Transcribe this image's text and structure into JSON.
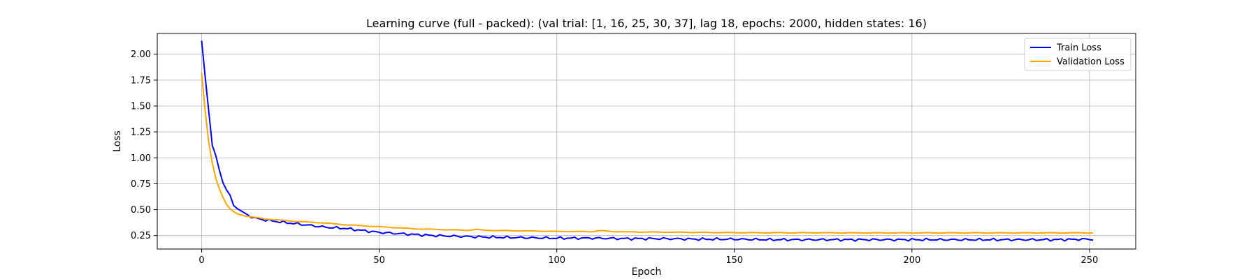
{
  "chart_data": {
    "type": "line",
    "title": "Learning curve (full - packed): (val trial: [1, 16, 25, 30, 37], lag 18, epochs: 2000, hidden states: 16)",
    "xlabel": "Epoch",
    "ylabel": "Loss",
    "xlim": [
      -12.5,
      263
    ],
    "ylim": [
      0.12,
      2.2
    ],
    "xticks": [
      0,
      50,
      100,
      150,
      200,
      250
    ],
    "yticks": [
      0.25,
      0.5,
      0.75,
      1.0,
      1.25,
      1.5,
      1.75,
      2.0
    ],
    "grid": true,
    "legend_position": "top-right",
    "series_keypoints": [
      {
        "name": "Train Loss",
        "color": "#0000ff",
        "x": [
          0,
          1,
          2,
          3,
          4,
          5,
          6,
          7,
          8,
          9,
          10,
          12,
          14,
          16,
          18,
          20,
          25,
          30,
          35,
          40,
          45,
          50,
          55,
          60,
          65,
          70,
          75,
          80,
          90,
          100,
          110,
          120,
          130,
          140,
          150,
          160,
          170,
          180,
          190,
          200,
          210,
          220,
          230,
          240,
          250,
          251
        ],
        "y": [
          2.13,
          1.78,
          1.45,
          1.12,
          1.02,
          0.88,
          0.76,
          0.69,
          0.64,
          0.54,
          0.51,
          0.47,
          0.43,
          0.41,
          0.4,
          0.39,
          0.37,
          0.35,
          0.33,
          0.32,
          0.3,
          0.28,
          0.27,
          0.26,
          0.25,
          0.245,
          0.24,
          0.235,
          0.23,
          0.225,
          0.225,
          0.22,
          0.22,
          0.215,
          0.215,
          0.21,
          0.21,
          0.21,
          0.21,
          0.21,
          0.21,
          0.21,
          0.21,
          0.21,
          0.215,
          0.21
        ]
      },
      {
        "name": "Validation Loss",
        "color": "#ffa500",
        "x": [
          0,
          1,
          2,
          3,
          4,
          5,
          6,
          7,
          8,
          9,
          10,
          12,
          14,
          16,
          18,
          20,
          25,
          30,
          35,
          40,
          45,
          50,
          55,
          60,
          65,
          70,
          75,
          77,
          80,
          90,
          100,
          110,
          112,
          115,
          120,
          130,
          140,
          150,
          160,
          170,
          180,
          190,
          200,
          210,
          220,
          230,
          240,
          250,
          251
        ],
        "y": [
          1.82,
          1.45,
          1.15,
          0.95,
          0.8,
          0.7,
          0.62,
          0.55,
          0.51,
          0.48,
          0.46,
          0.44,
          0.43,
          0.42,
          0.41,
          0.405,
          0.39,
          0.38,
          0.37,
          0.355,
          0.345,
          0.335,
          0.325,
          0.315,
          0.31,
          0.305,
          0.3,
          0.31,
          0.3,
          0.295,
          0.29,
          0.288,
          0.298,
          0.29,
          0.285,
          0.283,
          0.28,
          0.278,
          0.277,
          0.277,
          0.276,
          0.276,
          0.276,
          0.276,
          0.276,
          0.276,
          0.276,
          0.276,
          0.276
        ]
      }
    ],
    "series": [
      {
        "name": "Train Loss",
        "color": "#0000ff"
      },
      {
        "name": "Validation Loss",
        "color": "#ffa500"
      }
    ]
  }
}
